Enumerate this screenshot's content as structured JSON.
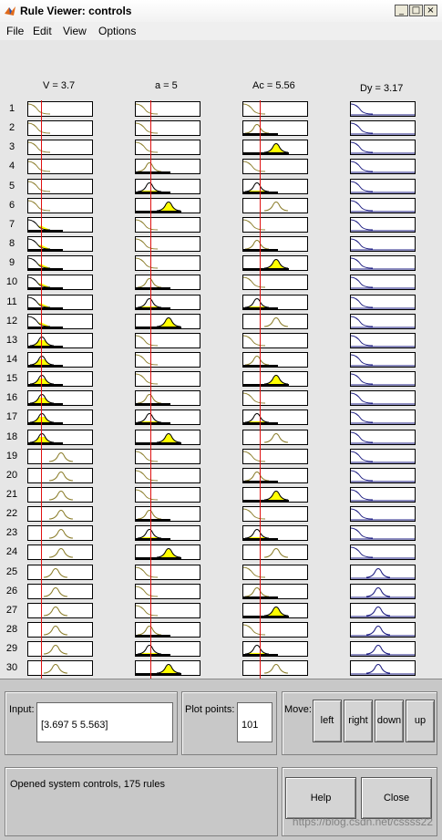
{
  "window": {
    "title": "Rule Viewer: controls",
    "min_glyph": "_",
    "max_glyph": "□",
    "close_glyph": "×"
  },
  "menu": {
    "file": "File",
    "edit": "Edit",
    "view": "View",
    "options": "Options"
  },
  "columns": [
    {
      "label": "V = 3.7",
      "kind": "input",
      "indicator_value": 3.7,
      "range": [
        0,
        10
      ]
    },
    {
      "label": "a = 5",
      "kind": "input",
      "indicator_value": 5,
      "range": [
        0,
        10
      ]
    },
    {
      "label": "Ac = 5.56",
      "kind": "input",
      "indicator_value": 5.56,
      "range": [
        0,
        10
      ]
    },
    {
      "label": "Dy = 3.17",
      "kind": "output"
    }
  ],
  "rows": [
    {
      "num": "1",
      "v": [
        0,
        0.0
      ],
      "a": [
        0,
        0.0
      ],
      "ac": [
        0,
        0.0
      ],
      "dy": 0
    },
    {
      "num": "2",
      "v": [
        0,
        0.0
      ],
      "a": [
        0,
        0.0
      ],
      "ac": [
        1,
        0.0
      ],
      "dy": 0
    },
    {
      "num": "3",
      "v": [
        0,
        0.0
      ],
      "a": [
        0,
        0.0
      ],
      "ac": [
        2,
        0.85
      ],
      "dy": 0
    },
    {
      "num": "4",
      "v": [
        0,
        0.0
      ],
      "a": [
        1,
        0.0
      ],
      "ac": [
        0,
        0.0
      ],
      "dy": 0
    },
    {
      "num": "5",
      "v": [
        0,
        0.0
      ],
      "a": [
        1,
        0.1
      ],
      "ac": [
        1,
        0.1
      ],
      "dy": 0
    },
    {
      "num": "6",
      "v": [
        0,
        0.0
      ],
      "a": [
        2,
        0.8
      ],
      "ac": [
        2,
        0.0
      ],
      "dy": 0
    },
    {
      "num": "7",
      "v": [
        0,
        0.4
      ],
      "a": [
        0,
        0.0
      ],
      "ac": [
        0,
        0.0
      ],
      "dy": 0
    },
    {
      "num": "8",
      "v": [
        0,
        0.4
      ],
      "a": [
        0,
        0.0
      ],
      "ac": [
        1,
        0.0
      ],
      "dy": 0
    },
    {
      "num": "9",
      "v": [
        0,
        0.4
      ],
      "a": [
        0,
        0.0
      ],
      "ac": [
        2,
        0.85
      ],
      "dy": 0
    },
    {
      "num": "10",
      "v": [
        0,
        0.4
      ],
      "a": [
        1,
        0.0
      ],
      "ac": [
        0,
        0.0
      ],
      "dy": 0
    },
    {
      "num": "11",
      "v": [
        0,
        0.4
      ],
      "a": [
        1,
        0.1
      ],
      "ac": [
        1,
        0.1
      ],
      "dy": 0
    },
    {
      "num": "12",
      "v": [
        0,
        0.4
      ],
      "a": [
        2,
        0.8
      ],
      "ac": [
        2,
        0.0
      ],
      "dy": 0
    },
    {
      "num": "13",
      "v": [
        1,
        0.55
      ],
      "a": [
        0,
        0.0
      ],
      "ac": [
        0,
        0.0
      ],
      "dy": 0
    },
    {
      "num": "14",
      "v": [
        1,
        0.55
      ],
      "a": [
        0,
        0.0
      ],
      "ac": [
        1,
        0.0
      ],
      "dy": 0
    },
    {
      "num": "15",
      "v": [
        1,
        0.55
      ],
      "a": [
        0,
        0.0
      ],
      "ac": [
        2,
        0.85
      ],
      "dy": 0
    },
    {
      "num": "16",
      "v": [
        1,
        0.55
      ],
      "a": [
        1,
        0.0
      ],
      "ac": [
        0,
        0.0
      ],
      "dy": 0
    },
    {
      "num": "17",
      "v": [
        1,
        0.55
      ],
      "a": [
        1,
        0.1
      ],
      "ac": [
        1,
        0.1
      ],
      "dy": 0
    },
    {
      "num": "18",
      "v": [
        1,
        0.55
      ],
      "a": [
        2,
        0.8
      ],
      "ac": [
        2,
        0.0
      ],
      "dy": 0
    },
    {
      "num": "19",
      "v": [
        2,
        0.0
      ],
      "a": [
        0,
        0.0
      ],
      "ac": [
        0,
        0.0
      ],
      "dy": 0
    },
    {
      "num": "20",
      "v": [
        2,
        0.0
      ],
      "a": [
        0,
        0.0
      ],
      "ac": [
        1,
        0.0
      ],
      "dy": 0
    },
    {
      "num": "21",
      "v": [
        2,
        0.0
      ],
      "a": [
        0,
        0.0
      ],
      "ac": [
        2,
        0.85
      ],
      "dy": 0
    },
    {
      "num": "22",
      "v": [
        2,
        0.0
      ],
      "a": [
        1,
        0.0
      ],
      "ac": [
        0,
        0.0
      ],
      "dy": 0
    },
    {
      "num": "23",
      "v": [
        2,
        0.0
      ],
      "a": [
        1,
        0.1
      ],
      "ac": [
        1,
        0.1
      ],
      "dy": 0
    },
    {
      "num": "24",
      "v": [
        2,
        0.0
      ],
      "a": [
        2,
        0.8
      ],
      "ac": [
        2,
        0.0
      ],
      "dy": 0
    },
    {
      "num": "25",
      "v": [
        3,
        0.0
      ],
      "a": [
        0,
        0.0
      ],
      "ac": [
        0,
        0.0
      ],
      "dy": 1
    },
    {
      "num": "26",
      "v": [
        3,
        0.0
      ],
      "a": [
        0,
        0.0
      ],
      "ac": [
        1,
        0.0
      ],
      "dy": 1
    },
    {
      "num": "27",
      "v": [
        3,
        0.0
      ],
      "a": [
        0,
        0.0
      ],
      "ac": [
        2,
        0.85
      ],
      "dy": 1
    },
    {
      "num": "28",
      "v": [
        3,
        0.0
      ],
      "a": [
        1,
        0.0
      ],
      "ac": [
        0,
        0.0
      ],
      "dy": 1
    },
    {
      "num": "29",
      "v": [
        3,
        0.0
      ],
      "a": [
        1,
        0.1
      ],
      "ac": [
        1,
        0.1
      ],
      "dy": 1
    },
    {
      "num": "30",
      "v": [
        3,
        0.0
      ],
      "a": [
        2,
        0.8
      ],
      "ac": [
        2,
        0.0
      ],
      "dy": 1
    }
  ],
  "panel": {
    "input_label": "Input:",
    "input_value": "[3.697 5 5.563]",
    "plotpoints_label": "Plot points:",
    "plotpoints_value": "101",
    "move_label": "Move:",
    "btn_left": "left",
    "btn_right": "right",
    "btn_down": "down",
    "btn_up": "up",
    "status": "Opened system controls, 175 rules",
    "btn_help": "Help",
    "btn_close": "Close",
    "watermark": "https://blog.csdn.net/cssss22"
  },
  "colors": {
    "indicator": "#e01010",
    "fill": "#ffff00",
    "input_curve": "#8b7d2a",
    "output_curve": "#1a1a80"
  }
}
